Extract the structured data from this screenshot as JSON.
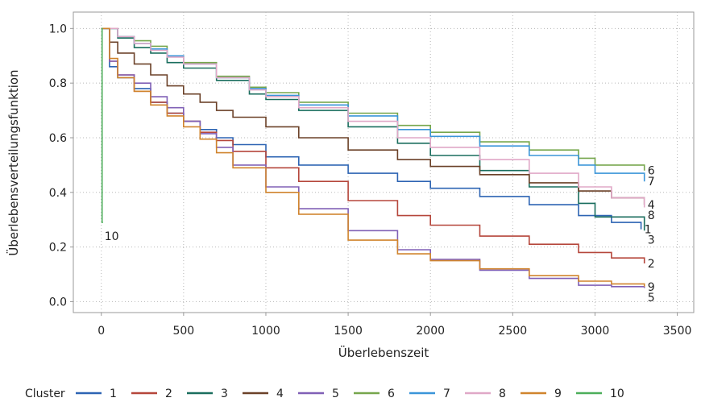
{
  "chart_data": {
    "type": "line",
    "xlabel": "Überlebenszeit",
    "ylabel": "Überlebensverteilungsfunktion",
    "xlim": [
      -170,
      3600
    ],
    "ylim": [
      -0.04,
      1.06
    ],
    "xticks": [
      0,
      500,
      1000,
      1500,
      2000,
      2500,
      3000,
      3500
    ],
    "xtick_labels": [
      "0",
      "500",
      "1000",
      "1500",
      "2000",
      "2500",
      "3000",
      "3500"
    ],
    "yticks": [
      0.0,
      0.2,
      0.4,
      0.6,
      0.8,
      1.0
    ],
    "ytick_labels": [
      "0.0",
      "0.2",
      "0.4",
      "0.6",
      "0.8",
      "1.0"
    ],
    "grid": "dotted",
    "legend_title": "Cluster",
    "legend_position": "bottom",
    "series": [
      {
        "name": "1",
        "color": "#2d64b3",
        "end_label": "1",
        "x": [
          0,
          50,
          100,
          200,
          300,
          400,
          500,
          600,
          700,
          800,
          1000,
          1200,
          1500,
          1800,
          2000,
          2300,
          2600,
          2900,
          3100,
          3280
        ],
        "y": [
          1.0,
          0.86,
          0.82,
          0.78,
          0.73,
          0.69,
          0.66,
          0.63,
          0.6,
          0.575,
          0.53,
          0.5,
          0.47,
          0.44,
          0.415,
          0.385,
          0.355,
          0.315,
          0.29,
          0.265
        ]
      },
      {
        "name": "2",
        "color": "#b5463b",
        "end_label": "2",
        "x": [
          0,
          50,
          100,
          200,
          300,
          400,
          500,
          600,
          700,
          800,
          1000,
          1200,
          1500,
          1800,
          2000,
          2300,
          2600,
          2900,
          3100,
          3300
        ],
        "y": [
          1.0,
          0.88,
          0.83,
          0.77,
          0.73,
          0.69,
          0.66,
          0.62,
          0.59,
          0.55,
          0.49,
          0.44,
          0.37,
          0.315,
          0.28,
          0.24,
          0.21,
          0.18,
          0.16,
          0.14
        ]
      },
      {
        "name": "3",
        "color": "#1a6e5e",
        "end_label": "3",
        "x": [
          0,
          100,
          200,
          300,
          400,
          500,
          700,
          900,
          1000,
          1200,
          1500,
          1800,
          2000,
          2300,
          2600,
          2900,
          3000,
          3300
        ],
        "y": [
          1.0,
          0.965,
          0.93,
          0.91,
          0.875,
          0.855,
          0.81,
          0.76,
          0.74,
          0.7,
          0.64,
          0.58,
          0.535,
          0.48,
          0.42,
          0.36,
          0.31,
          0.26
        ]
      },
      {
        "name": "4",
        "color": "#6b4128",
        "end_label": "4",
        "x": [
          0,
          50,
          100,
          200,
          300,
          400,
          500,
          600,
          700,
          800,
          1000,
          1200,
          1500,
          1800,
          2000,
          2300,
          2600,
          2900,
          3100,
          3300
        ],
        "y": [
          1.0,
          0.95,
          0.91,
          0.87,
          0.83,
          0.79,
          0.76,
          0.73,
          0.7,
          0.675,
          0.64,
          0.6,
          0.555,
          0.52,
          0.495,
          0.465,
          0.435,
          0.405,
          0.38,
          0.355
        ]
      },
      {
        "name": "5",
        "color": "#8060b6",
        "end_label": "5",
        "x": [
          0,
          50,
          100,
          200,
          300,
          400,
          500,
          600,
          700,
          800,
          1000,
          1200,
          1500,
          1800,
          2000,
          2300,
          2600,
          2900,
          3100,
          3300
        ],
        "y": [
          1.0,
          0.88,
          0.83,
          0.8,
          0.75,
          0.71,
          0.66,
          0.615,
          0.565,
          0.5,
          0.42,
          0.34,
          0.26,
          0.19,
          0.155,
          0.115,
          0.085,
          0.06,
          0.055,
          0.05
        ]
      },
      {
        "name": "6",
        "color": "#76a64c",
        "end_label": "6",
        "x": [
          0,
          100,
          200,
          300,
          400,
          500,
          700,
          900,
          1000,
          1200,
          1500,
          1800,
          2000,
          2300,
          2600,
          2900,
          3000,
          3300
        ],
        "y": [
          1.0,
          0.97,
          0.955,
          0.935,
          0.9,
          0.875,
          0.825,
          0.785,
          0.765,
          0.73,
          0.69,
          0.645,
          0.62,
          0.585,
          0.555,
          0.525,
          0.5,
          0.48
        ]
      },
      {
        "name": "7",
        "color": "#3b95d9",
        "end_label": "7",
        "x": [
          0,
          100,
          200,
          300,
          400,
          500,
          700,
          900,
          1000,
          1200,
          1500,
          1800,
          2000,
          2300,
          2600,
          2900,
          3000,
          3300
        ],
        "y": [
          1.0,
          0.97,
          0.945,
          0.925,
          0.9,
          0.87,
          0.82,
          0.78,
          0.755,
          0.72,
          0.68,
          0.63,
          0.605,
          0.57,
          0.535,
          0.5,
          0.47,
          0.44
        ]
      },
      {
        "name": "8",
        "color": "#e0a8c7",
        "end_label": "8",
        "x": [
          0,
          100,
          200,
          300,
          400,
          500,
          700,
          900,
          1000,
          1200,
          1500,
          1800,
          2000,
          2300,
          2600,
          2900,
          3100,
          3300
        ],
        "y": [
          1.0,
          0.97,
          0.945,
          0.92,
          0.895,
          0.87,
          0.82,
          0.775,
          0.75,
          0.71,
          0.66,
          0.6,
          0.565,
          0.52,
          0.47,
          0.42,
          0.38,
          0.345
        ]
      },
      {
        "name": "9",
        "color": "#d0842d",
        "end_label": "9",
        "x": [
          0,
          50,
          100,
          200,
          300,
          400,
          500,
          600,
          700,
          800,
          1000,
          1200,
          1500,
          1800,
          2000,
          2300,
          2600,
          2900,
          3100,
          3300
        ],
        "y": [
          1.0,
          0.89,
          0.82,
          0.77,
          0.72,
          0.68,
          0.64,
          0.595,
          0.545,
          0.49,
          0.4,
          0.32,
          0.225,
          0.175,
          0.15,
          0.12,
          0.095,
          0.075,
          0.065,
          0.055
        ]
      },
      {
        "name": "10",
        "color": "#4cae5a",
        "end_label": "10",
        "x": [
          0,
          5,
          5,
          10
        ],
        "y": [
          1.0,
          1.0,
          0.29,
          0.29
        ]
      }
    ]
  }
}
